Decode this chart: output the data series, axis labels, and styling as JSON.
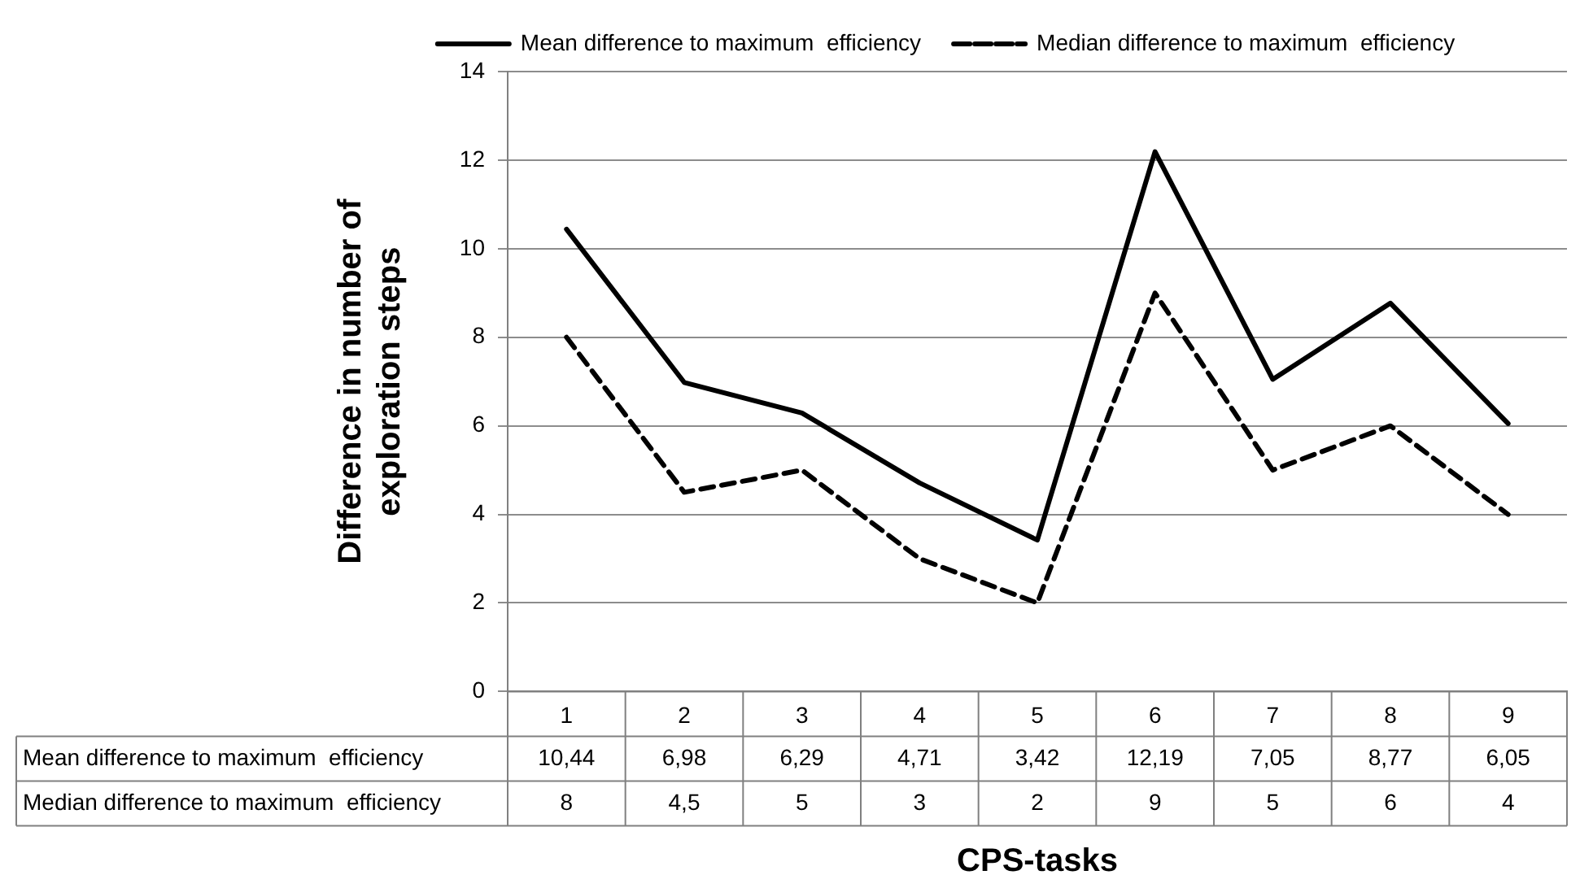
{
  "chart_data": {
    "type": "line",
    "xlabel": "CPS-tasks",
    "ylabel": "Difference in number of exploration steps",
    "categories": [
      "1",
      "2",
      "3",
      "4",
      "5",
      "6",
      "7",
      "8",
      "9"
    ],
    "series": [
      {
        "name": "Mean difference to maximum  efficiency",
        "color": "#000000",
        "line_style": "solid",
        "values": [
          10.44,
          6.98,
          6.29,
          4.71,
          3.42,
          12.19,
          7.05,
          8.77,
          6.05
        ],
        "value_labels": [
          "10,44",
          "6,98",
          "6,29",
          "4,71",
          "3,42",
          "12,19",
          "7,05",
          "8,77",
          "6,05"
        ]
      },
      {
        "name": "Median difference to maximum  efficiency",
        "color": "#000000",
        "line_style": "dashed",
        "values": [
          8,
          4.5,
          5,
          3,
          2,
          9,
          5,
          6,
          4
        ],
        "value_labels": [
          "8",
          "4,5",
          "5",
          "3",
          "2",
          "9",
          "5",
          "6",
          "4"
        ]
      }
    ],
    "ylim": [
      0,
      14
    ],
    "yticks": [
      0,
      2,
      4,
      6,
      8,
      10,
      12,
      14
    ],
    "grid": "y",
    "legend": "top",
    "marker": "none"
  }
}
